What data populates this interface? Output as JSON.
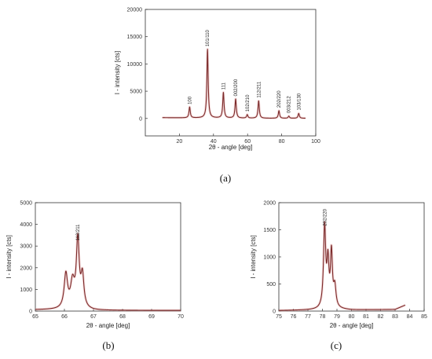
{
  "panel_labels": {
    "a": "(a)",
    "b": "(b)",
    "c": "(c)"
  },
  "chart_data": [
    {
      "id": "a",
      "type": "line",
      "xlabel": "2θ - angle [deg]",
      "ylabel": "I - intensity [cts]",
      "xlim": [
        0,
        100
      ],
      "ylim": [
        -3200,
        20000
      ],
      "xticks": [
        20,
        40,
        60,
        80,
        100
      ],
      "yticks": [
        0,
        5000,
        10000,
        15000,
        20000
      ],
      "line_color": "#7a2a2a",
      "grid": false,
      "baseline": [
        [
          10,
          150
        ],
        [
          25,
          100
        ],
        [
          40,
          80
        ],
        [
          60,
          40
        ],
        [
          80,
          20
        ],
        [
          94,
          30
        ]
      ],
      "peaks": [
        {
          "x": 26.0,
          "y": 2000,
          "w": 0.45,
          "label": "100"
        },
        {
          "x": 36.5,
          "y": 12600,
          "w": 0.45,
          "label": "101/110"
        },
        {
          "x": 45.8,
          "y": 4700,
          "w": 0.45,
          "label": "111"
        },
        {
          "x": 53.0,
          "y": 3500,
          "w": 0.45,
          "label": "002/200"
        },
        {
          "x": 59.8,
          "y": 650,
          "w": 0.45,
          "label": "102/210"
        },
        {
          "x": 66.5,
          "y": 3200,
          "w": 0.45,
          "label": "112/211"
        },
        {
          "x": 78.4,
          "y": 1400,
          "w": 0.45,
          "label": "202/220"
        },
        {
          "x": 84.2,
          "y": 400,
          "w": 0.45,
          "label": "003/212"
        },
        {
          "x": 90.0,
          "y": 900,
          "w": 0.45,
          "label": "103/130"
        }
      ]
    },
    {
      "id": "b",
      "type": "line",
      "xlabel": "2θ - angle [deg]",
      "ylabel": "I - intensity [cts]",
      "xlim": [
        65,
        70
      ],
      "ylim": [
        0,
        5000
      ],
      "xticks": [
        65,
        66,
        67,
        68,
        69,
        70
      ],
      "yticks": [
        0,
        1000,
        2000,
        3000,
        4000,
        5000
      ],
      "line_color": "#7a2a2a",
      "grid": false,
      "baseline": [
        [
          65.0,
          60
        ],
        [
          66.7,
          60
        ],
        [
          67.0,
          30
        ],
        [
          70.0,
          30
        ]
      ],
      "peaks": [
        {
          "x": 66.05,
          "y": 1580,
          "w": 0.07
        },
        {
          "x": 66.28,
          "y": 1150,
          "w": 0.08
        },
        {
          "x": 66.46,
          "y": 3100,
          "w": 0.06
        },
        {
          "x": 66.62,
          "y": 1450,
          "w": 0.06
        }
      ],
      "annotation": {
        "x": 66.46,
        "y": 3250,
        "label": "112/211"
      }
    },
    {
      "id": "c",
      "type": "line",
      "xlabel": "2θ - angle [deg]",
      "ylabel": "I - intensity [cts]",
      "xlim": [
        75,
        85
      ],
      "ylim": [
        0,
        2000
      ],
      "xticks": [
        75,
        76,
        77,
        78,
        79,
        80,
        81,
        82,
        83,
        84,
        85
      ],
      "yticks": [
        0,
        500,
        1000,
        1500,
        2000
      ],
      "line_color": "#7a2a2a",
      "grid": false,
      "x_end": 83.7,
      "baseline": [
        [
          75.0,
          10
        ],
        [
          77.5,
          20
        ],
        [
          79.2,
          30
        ],
        [
          80.0,
          20
        ],
        [
          83.0,
          30
        ],
        [
          83.7,
          110
        ]
      ],
      "peaks": [
        {
          "x": 78.15,
          "y": 1500,
          "w": 0.09
        },
        {
          "x": 78.38,
          "y": 800,
          "w": 0.08
        },
        {
          "x": 78.62,
          "y": 1000,
          "w": 0.08
        },
        {
          "x": 78.85,
          "y": 380,
          "w": 0.1
        }
      ],
      "annotation": {
        "x": 78.15,
        "y": 1570,
        "label": "202/220"
      }
    }
  ]
}
